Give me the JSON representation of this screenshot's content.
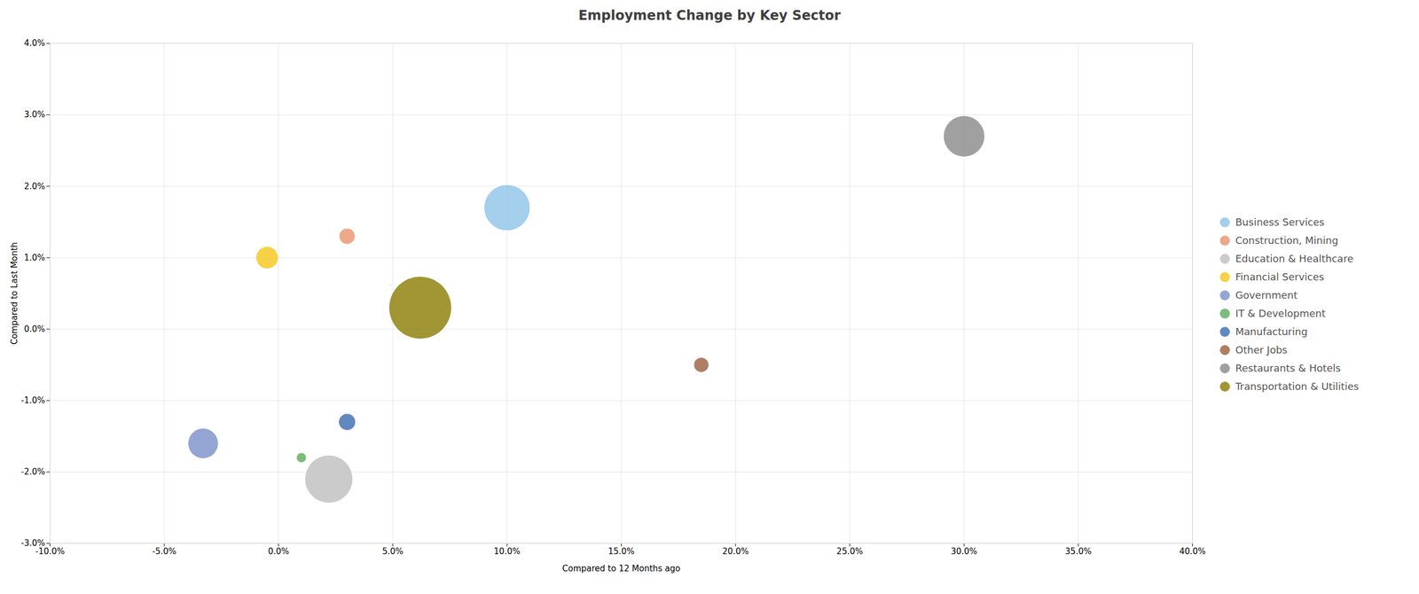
{
  "chart_data": {
    "type": "scatter",
    "title": "Employment Change by Key Sector",
    "xlabel": "Compared to 12 Months ago",
    "ylabel": "Compared to Last Month",
    "xlim": [
      -0.1,
      0.4
    ],
    "ylim": [
      -0.03,
      0.04
    ],
    "xticks": [
      {
        "value": -0.1,
        "label": "-10.0%"
      },
      {
        "value": -0.05,
        "label": "-5.0%"
      },
      {
        "value": 0.0,
        "label": "0.0%"
      },
      {
        "value": 0.05,
        "label": "5.0%"
      },
      {
        "value": 0.1,
        "label": "10.0%"
      },
      {
        "value": 0.15,
        "label": "15.0%"
      },
      {
        "value": 0.2,
        "label": "20.0%"
      },
      {
        "value": 0.25,
        "label": "25.0%"
      },
      {
        "value": 0.3,
        "label": "30.0%"
      },
      {
        "value": 0.35,
        "label": "35.0%"
      },
      {
        "value": 0.4,
        "label": "40.0%"
      }
    ],
    "yticks": [
      {
        "value": -0.03,
        "label": "-3.0%"
      },
      {
        "value": -0.02,
        "label": "-2.0%"
      },
      {
        "value": -0.01,
        "label": "-1.0%"
      },
      {
        "value": 0.0,
        "label": "0.0%"
      },
      {
        "value": 0.01,
        "label": "1.0%"
      },
      {
        "value": 0.02,
        "label": "2.0%"
      },
      {
        "value": 0.03,
        "label": "3.0%"
      },
      {
        "value": 0.04,
        "label": "4.0%"
      }
    ],
    "grid": true,
    "legend": "right",
    "series": [
      {
        "name": "Business Services",
        "color": "#8DC3E8",
        "x": [
          0.1
        ],
        "y": [
          0.017
        ],
        "size": [
          3500
        ]
      },
      {
        "name": "Construction, Mining",
        "color": "#E8926A",
        "x": [
          0.03
        ],
        "y": [
          0.013
        ],
        "size": [
          400
        ]
      },
      {
        "name": "Education & Healthcare",
        "color": "#BEBEBE",
        "x": [
          0.022
        ],
        "y": [
          -0.021
        ],
        "size": [
          3800
        ]
      },
      {
        "name": "Financial Services",
        "color": "#F5C518",
        "x": [
          -0.005
        ],
        "y": [
          0.01
        ],
        "size": [
          800
        ]
      },
      {
        "name": "Government",
        "color": "#7B8EC8",
        "x": [
          -0.033
        ],
        "y": [
          -0.016
        ],
        "size": [
          1500
        ]
      },
      {
        "name": "IT & Development",
        "color": "#5AAA5A",
        "x": [
          0.01
        ],
        "y": [
          -0.018
        ],
        "size": [
          150
        ]
      },
      {
        "name": "Manufacturing",
        "color": "#3A6CB0",
        "x": [
          0.03
        ],
        "y": [
          -0.013
        ],
        "size": [
          450
        ]
      },
      {
        "name": "Other Jobs",
        "color": "#9B5E3C",
        "x": [
          0.185
        ],
        "y": [
          -0.005
        ],
        "size": [
          350
        ]
      },
      {
        "name": "Restaurants & Hotels",
        "color": "#888888",
        "x": [
          0.3
        ],
        "y": [
          0.027
        ],
        "size": [
          2800
        ]
      },
      {
        "name": "Transportation & Utilities",
        "color": "#8B7B00",
        "x": [
          0.062
        ],
        "y": [
          0.003
        ],
        "size": [
          6500
        ]
      }
    ]
  }
}
